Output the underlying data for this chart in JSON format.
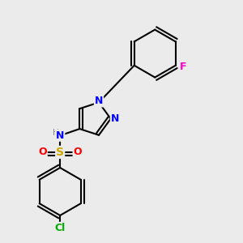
{
  "bg_color": "#ebebeb",
  "bond_color": "#000000",
  "bond_width": 1.5,
  "colors": {
    "N": "#0000ff",
    "O": "#ff0000",
    "S": "#ccaa00",
    "Cl": "#00aa00",
    "F": "#ff00cc",
    "C": "#000000",
    "H": "#888888"
  },
  "layout": {
    "xlim": [
      0,
      10
    ],
    "ylim": [
      0,
      10
    ]
  }
}
